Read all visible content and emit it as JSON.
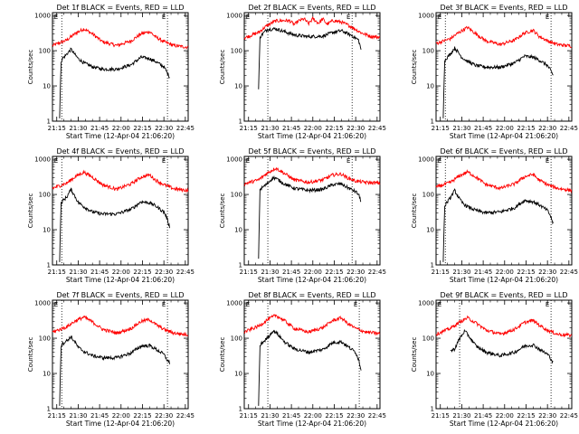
{
  "chart_data": {
    "type": "line",
    "layout": "3x3 grid",
    "x_tick_labels": [
      "21:15",
      "21:30",
      "21:45",
      "22:00",
      "22:15",
      "22:30",
      "22:45"
    ],
    "x_range_minutes": [
      0,
      95
    ],
    "y_tick_labels": [
      "1",
      "10",
      "100",
      "1000"
    ],
    "y_scale": "log",
    "ylim": [
      1,
      1200
    ],
    "marker_label": "E",
    "series_colors": {
      "events": "#000000",
      "lld": "#ff0000"
    },
    "panels": [
      {
        "title": "Det 1f BLACK = Events, RED = LLD",
        "xlabel": "Start Time (12-Apr-04 21:06:20)",
        "ylabel": "Counts/sec",
        "vlines": [
          6.5,
          80.5
        ],
        "lld": {
          "x": [
            0,
            10,
            16,
            22,
            28,
            35,
            45,
            55,
            62,
            68,
            72,
            78,
            85,
            95
          ],
          "y": [
            140,
            200,
            310,
            420,
            300,
            180,
            140,
            190,
            300,
            350,
            250,
            180,
            140,
            125
          ]
        },
        "events": {
          "x": [
            5,
            6,
            7,
            10,
            13,
            16,
            18,
            22,
            28,
            35,
            45,
            55,
            62,
            68,
            72,
            78,
            80,
            82
          ],
          "y": [
            1.2,
            50,
            60,
            80,
            110,
            75,
            60,
            45,
            35,
            30,
            30,
            40,
            65,
            60,
            50,
            35,
            25,
            18
          ]
        }
      },
      {
        "title": "Det 2f BLACK = Events, RED = LLD",
        "xlabel": "Start Time (12-Apr-04 21:06:20)",
        "ylabel": "Counts/sec",
        "vlines": [
          16.5,
          75.5
        ],
        "lld": {
          "x": [
            0,
            10,
            16,
            22,
            28,
            32,
            35,
            38,
            42,
            45,
            48,
            52,
            55,
            58,
            62,
            68,
            75,
            82,
            88,
            95
          ],
          "y": [
            230,
            330,
            520,
            700,
            720,
            700,
            550,
            700,
            800,
            580,
            820,
            600,
            800,
            560,
            720,
            650,
            480,
            320,
            260,
            240
          ]
        },
        "events": {
          "x": [
            10,
            11,
            12,
            16,
            22,
            28,
            35,
            45,
            55,
            62,
            68,
            72,
            76,
            80,
            82
          ],
          "y": [
            8,
            230,
            280,
            400,
            420,
            350,
            280,
            250,
            260,
            330,
            370,
            310,
            260,
            200,
            100
          ]
        }
      },
      {
        "title": "Det 3f BLACK = Events, RED = LLD",
        "xlabel": "Start Time (12-Apr-04 21:06:20)",
        "ylabel": "Counts/sec",
        "vlines": [
          6.5,
          80.5
        ],
        "lld": {
          "x": [
            0,
            10,
            16,
            22,
            28,
            35,
            45,
            55,
            62,
            68,
            72,
            78,
            85,
            95
          ],
          "y": [
            160,
            220,
            330,
            460,
            300,
            190,
            150,
            200,
            320,
            380,
            260,
            190,
            150,
            135
          ]
        },
        "events": {
          "x": [
            5,
            6,
            7,
            10,
            13,
            16,
            18,
            22,
            28,
            35,
            45,
            55,
            62,
            68,
            72,
            78,
            80,
            82
          ],
          "y": [
            1.2,
            50,
            60,
            80,
            120,
            85,
            65,
            50,
            38,
            34,
            34,
            45,
            70,
            65,
            55,
            38,
            28,
            20
          ]
        }
      },
      {
        "title": "Det 4f BLACK = Events, RED = LLD",
        "xlabel": "Start Time (12-Apr-04 21:06:20)",
        "ylabel": "Counts/sec",
        "vlines": [
          6.5,
          80.5
        ],
        "lld": {
          "x": [
            0,
            10,
            16,
            22,
            28,
            35,
            45,
            55,
            62,
            68,
            72,
            78,
            85,
            95
          ],
          "y": [
            150,
            210,
            320,
            430,
            310,
            190,
            140,
            200,
            310,
            360,
            260,
            190,
            145,
            130
          ]
        },
        "events": {
          "x": [
            5,
            6,
            7,
            10,
            13,
            16,
            18,
            22,
            28,
            35,
            45,
            55,
            62,
            68,
            72,
            78,
            80,
            82
          ],
          "y": [
            1.2,
            55,
            65,
            85,
            140,
            85,
            60,
            45,
            32,
            28,
            28,
            38,
            62,
            58,
            48,
            32,
            22,
            12
          ]
        }
      },
      {
        "title": "Det 5f BLACK = Events, RED = LLD",
        "xlabel": "Start Time (12-Apr-04 21:06:20)",
        "ylabel": "Counts/sec",
        "vlines": [
          16.5,
          75.5
        ],
        "lld": {
          "x": [
            0,
            10,
            16,
            22,
            28,
            35,
            45,
            55,
            62,
            68,
            72,
            78,
            85,
            95
          ],
          "y": [
            200,
            260,
            400,
            560,
            400,
            260,
            220,
            260,
            360,
            380,
            300,
            240,
            220,
            210
          ]
        },
        "events": {
          "x": [
            10,
            11,
            12,
            16,
            20,
            22,
            28,
            35,
            45,
            55,
            62,
            68,
            72,
            78,
            80,
            82
          ],
          "y": [
            1.5,
            140,
            150,
            200,
            300,
            290,
            200,
            150,
            130,
            140,
            190,
            200,
            160,
            120,
            100,
            60
          ]
        }
      },
      {
        "title": "Det 6f BLACK = Events, RED = LLD",
        "xlabel": "Start Time (12-Apr-04 21:06:20)",
        "ylabel": "Counts/sec",
        "vlines": [
          6.5,
          80.5
        ],
        "lld": {
          "x": [
            0,
            10,
            16,
            22,
            28,
            35,
            45,
            55,
            62,
            68,
            72,
            78,
            85,
            95
          ],
          "y": [
            160,
            220,
            330,
            440,
            310,
            190,
            150,
            200,
            320,
            370,
            260,
            190,
            150,
            130
          ]
        },
        "events": {
          "x": [
            5,
            6,
            7,
            10,
            13,
            16,
            18,
            22,
            28,
            35,
            45,
            55,
            62,
            68,
            72,
            78,
            80,
            82
          ],
          "y": [
            1.2,
            45,
            55,
            80,
            130,
            80,
            60,
            45,
            35,
            30,
            32,
            42,
            68,
            62,
            52,
            35,
            25,
            15
          ]
        }
      },
      {
        "title": "Det 7f BLACK = Events, RED = LLD",
        "xlabel": "Start Time (12-Apr-04 21:06:20)",
        "ylabel": "Counts/sec",
        "vlines": [
          6.5,
          80.5
        ],
        "lld": {
          "x": [
            0,
            10,
            16,
            22,
            28,
            35,
            45,
            55,
            62,
            68,
            72,
            78,
            85,
            95
          ],
          "y": [
            150,
            210,
            310,
            400,
            290,
            180,
            140,
            190,
            300,
            340,
            250,
            180,
            140,
            125
          ]
        },
        "events": {
          "x": [
            5,
            6,
            7,
            10,
            13,
            16,
            18,
            22,
            28,
            35,
            45,
            55,
            62,
            68,
            72,
            78,
            80,
            82
          ],
          "y": [
            1.2,
            60,
            70,
            85,
            110,
            75,
            55,
            42,
            32,
            28,
            28,
            38,
            60,
            62,
            50,
            35,
            25,
            20
          ]
        }
      },
      {
        "title": "Det 8f BLACK = Events, RED = LLD",
        "xlabel": "Start Time (12-Apr-04 21:06:20)",
        "ylabel": "Counts/sec",
        "vlines": [
          16.5,
          80.5
        ],
        "lld": {
          "x": [
            0,
            10,
            16,
            22,
            28,
            35,
            45,
            55,
            62,
            68,
            72,
            78,
            85,
            95
          ],
          "y": [
            150,
            220,
            330,
            450,
            320,
            190,
            150,
            200,
            320,
            380,
            270,
            190,
            150,
            135
          ]
        },
        "events": {
          "x": [
            10,
            11,
            12,
            16,
            20,
            22,
            28,
            35,
            45,
            55,
            62,
            68,
            72,
            78,
            80,
            82
          ],
          "y": [
            1.2,
            60,
            70,
            100,
            160,
            150,
            80,
            50,
            40,
            48,
            75,
            80,
            60,
            40,
            25,
            12
          ]
        }
      },
      {
        "title": "Det 9f BLACK = Events, RED = LLD",
        "xlabel": "Start Time (12-Apr-04 21:06:20)",
        "ylabel": "Counts/sec",
        "vlines": [
          16.5,
          80.5
        ],
        "lld": {
          "x": [
            0,
            10,
            16,
            22,
            28,
            35,
            45,
            55,
            62,
            68,
            72,
            78,
            85,
            95
          ],
          "y": [
            130,
            190,
            280,
            380,
            270,
            170,
            130,
            180,
            280,
            320,
            240,
            170,
            130,
            120
          ]
        },
        "events": {
          "x": [
            10,
            11,
            13,
            16,
            20,
            22,
            28,
            35,
            45,
            55,
            62,
            68,
            72,
            78,
            80,
            82
          ],
          "y": [
            45,
            45,
            50,
            90,
            160,
            130,
            60,
            40,
            32,
            40,
            60,
            65,
            50,
            35,
            28,
            20
          ]
        }
      }
    ]
  }
}
